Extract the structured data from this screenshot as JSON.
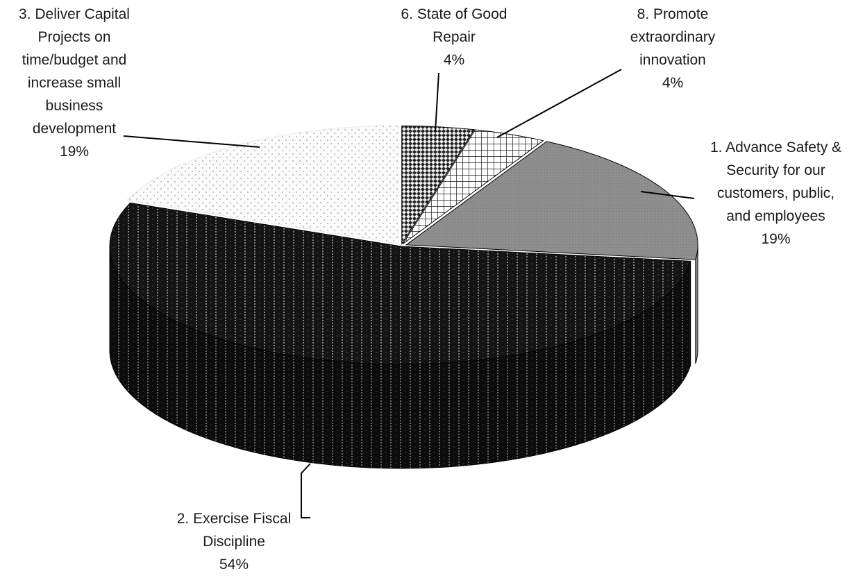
{
  "chart_data": {
    "type": "pie",
    "title": "",
    "style": "3d-exploded-patterned",
    "slices": [
      {
        "name": "1. Advance Safety & Security for our customers, public, and employees",
        "label_lines": [
          "1.  Advance Safety &",
          "Security for our",
          "customers, public,",
          "and employees"
        ],
        "value": 19,
        "pct_label": "19%",
        "fill": "#8c8c8c",
        "pattern": "solid-gray"
      },
      {
        "name": "2. Exercise Fiscal Discipline",
        "label_lines": [
          "2.  Exercise Fiscal",
          "Discipline"
        ],
        "value": 54,
        "pct_label": "54%",
        "fill": "#1a1a1a",
        "pattern": "dark-dotted-vertical"
      },
      {
        "name": "3. Deliver Capital Projects on time/budget and increase small business development",
        "label_lines": [
          "3.  Deliver Capital",
          "Projects on",
          "time/budget and",
          "increase small",
          "business",
          "development"
        ],
        "value": 19,
        "pct_label": "19%",
        "fill": "#f4f4f4",
        "pattern": "light-dots"
      },
      {
        "name": "6. State of Good Repair",
        "label_lines": [
          "6.  State of Good",
          "Repair"
        ],
        "value": 4,
        "pct_label": "4%",
        "fill": "#6a6a6a",
        "pattern": "diamond-checker"
      },
      {
        "name": "8. Promote extraordinary innovation",
        "label_lines": [
          "8. Promote",
          "extraordinary",
          "innovation"
        ],
        "value": 4,
        "pct_label": "4%",
        "fill": "#ffffff",
        "pattern": "grid"
      }
    ],
    "legend": "none",
    "data_labels": "outside-with-leader-lines"
  }
}
